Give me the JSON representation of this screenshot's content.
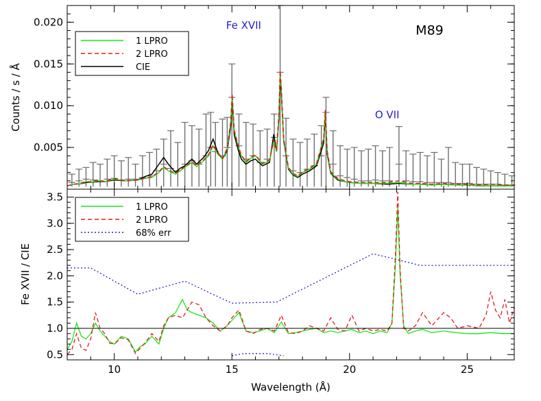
{
  "chart_data": [
    {
      "type": "line",
      "id": "spectrum",
      "ylabel": "Counts / s / Å",
      "xlim": [
        8,
        27
      ],
      "ylim": [
        0,
        0.022
      ],
      "yticks": [
        "0.005",
        "0.010",
        "0.015",
        "0.020"
      ],
      "annotations": [
        {
          "text": "M89",
          "x": 23.4,
          "y": 0.0185,
          "color": "#000000"
        },
        {
          "text": "Fe XVII",
          "x": 15.5,
          "y": 0.0192,
          "color": "#1f1fd0"
        },
        {
          "text": "O VII",
          "x": 21.6,
          "y": 0.0085,
          "color": "#1f1fd0"
        }
      ],
      "legend": {
        "placement": "top-left",
        "entries": [
          {
            "label": "1 LPRO",
            "color": "#19e619",
            "style": "solid"
          },
          {
            "label": "2 LPRO",
            "color": "#e61919",
            "style": "dashed"
          },
          {
            "label": "CIE",
            "color": "#000000",
            "style": "solid"
          }
        ]
      },
      "model_x": [
        8.0,
        8.3,
        8.5,
        8.8,
        9.0,
        9.3,
        9.6,
        10.0,
        10.5,
        11.0,
        11.3,
        11.6,
        11.9,
        12.1,
        12.3,
        12.6,
        12.8,
        13.0,
        13.3,
        13.5,
        13.8,
        14.0,
        14.2,
        14.4,
        14.6,
        14.8,
        14.95,
        15.01,
        15.1,
        15.26,
        15.4,
        15.6,
        15.8,
        16.0,
        16.3,
        16.6,
        16.78,
        16.9,
        17.0,
        17.05,
        17.1,
        17.2,
        17.4,
        17.6,
        17.8,
        18.0,
        18.3,
        18.6,
        18.9,
        18.97,
        19.05,
        19.2,
        19.5,
        19.8,
        20.0,
        20.5,
        21.0,
        21.6,
        22.1,
        22.6,
        23.0,
        23.5,
        24.0,
        24.5,
        25.0,
        25.5,
        26.0,
        26.5,
        27.0
      ],
      "series": [
        {
          "name": "1 LPRO",
          "color": "#19e619",
          "dash": "",
          "values": [
            0.0004,
            0.0006,
            0.0006,
            0.0009,
            0.0008,
            0.001,
            0.0009,
            0.0012,
            0.001,
            0.0011,
            0.0013,
            0.0014,
            0.002,
            0.0026,
            0.0022,
            0.0018,
            0.0022,
            0.0026,
            0.0032,
            0.0027,
            0.0034,
            0.004,
            0.0052,
            0.0042,
            0.0036,
            0.0048,
            0.008,
            0.0113,
            0.007,
            0.0052,
            0.004,
            0.0032,
            0.0037,
            0.004,
            0.003,
            0.0034,
            0.0058,
            0.0045,
            0.009,
            0.014,
            0.012,
            0.006,
            0.0025,
            0.0018,
            0.0015,
            0.002,
            0.0024,
            0.003,
            0.006,
            0.0094,
            0.0045,
            0.002,
            0.0012,
            0.0009,
            0.0008,
            0.0007,
            0.0007,
            0.0007,
            0.0008,
            0.0006,
            0.0006,
            0.0005,
            0.0006,
            0.0005,
            0.0005,
            0.0004,
            0.0004,
            0.0004,
            0.0004
          ]
        },
        {
          "name": "2 LPRO",
          "color": "#e61919",
          "dash": "6,4",
          "values": [
            0.0004,
            0.0006,
            0.0007,
            0.0009,
            0.0009,
            0.0011,
            0.0009,
            0.0013,
            0.001,
            0.0011,
            0.0013,
            0.0015,
            0.0021,
            0.0027,
            0.0023,
            0.0019,
            0.0023,
            0.0027,
            0.0033,
            0.0028,
            0.0035,
            0.0041,
            0.0053,
            0.0043,
            0.0037,
            0.0049,
            0.0081,
            0.0114,
            0.0071,
            0.0053,
            0.0041,
            0.0033,
            0.0038,
            0.0041,
            0.0031,
            0.0035,
            0.0059,
            0.0046,
            0.0091,
            0.0142,
            0.0121,
            0.0061,
            0.0026,
            0.0019,
            0.0016,
            0.0021,
            0.0025,
            0.0031,
            0.0061,
            0.0095,
            0.0046,
            0.0021,
            0.0013,
            0.001,
            0.0009,
            0.0008,
            0.0008,
            0.0008,
            0.001,
            0.0007,
            0.0007,
            0.0006,
            0.0007,
            0.0006,
            0.0006,
            0.0005,
            0.0006,
            0.0005,
            0.0005
          ]
        },
        {
          "name": "CIE",
          "color": "#000000",
          "dash": "",
          "values": [
            0.0004,
            0.0006,
            0.0006,
            0.0008,
            0.0008,
            0.0009,
            0.0009,
            0.0011,
            0.001,
            0.0011,
            0.0015,
            0.0018,
            0.003,
            0.0038,
            0.003,
            0.002,
            0.0025,
            0.0028,
            0.0036,
            0.003,
            0.0038,
            0.0046,
            0.006,
            0.0044,
            0.0036,
            0.0046,
            0.0075,
            0.0108,
            0.0065,
            0.0048,
            0.0036,
            0.003,
            0.0034,
            0.0036,
            0.0028,
            0.0032,
            0.0066,
            0.0045,
            0.0085,
            0.0132,
            0.0115,
            0.0058,
            0.0024,
            0.0017,
            0.0014,
            0.0018,
            0.0022,
            0.0028,
            0.0055,
            0.0088,
            0.0042,
            0.0019,
            0.0011,
            0.0009,
            0.0008,
            0.0007,
            0.0007,
            0.0006,
            0.0007,
            0.0006,
            0.0006,
            0.0005,
            0.0006,
            0.0005,
            0.0005,
            0.0004,
            0.0004,
            0.0004,
            0.0004
          ]
        }
      ],
      "errorbars": [
        [
          8.2,
          0.0008,
          0.0018
        ],
        [
          8.5,
          0.001,
          0.0024
        ],
        [
          8.8,
          0.0012,
          0.0026
        ],
        [
          9.1,
          0.0011,
          0.0032
        ],
        [
          9.4,
          0.001,
          0.003
        ],
        [
          9.7,
          0.0012,
          0.0036
        ],
        [
          10.0,
          0.0013,
          0.004
        ],
        [
          10.3,
          0.0011,
          0.0034
        ],
        [
          10.6,
          0.0012,
          0.0038
        ],
        [
          10.9,
          0.0012,
          0.003
        ],
        [
          11.2,
          0.0014,
          0.004
        ],
        [
          11.5,
          0.0016,
          0.0044
        ],
        [
          11.8,
          0.0022,
          0.0048
        ],
        [
          12.1,
          0.003,
          0.006
        ],
        [
          12.4,
          0.0025,
          0.007
        ],
        [
          12.7,
          0.0022,
          0.0056
        ],
        [
          13.0,
          0.003,
          0.008
        ],
        [
          13.3,
          0.0034,
          0.0076
        ],
        [
          13.6,
          0.003,
          0.0072
        ],
        [
          13.9,
          0.004,
          0.009
        ],
        [
          14.1,
          0.005,
          0.0092
        ],
        [
          14.3,
          0.0045,
          0.008
        ],
        [
          14.6,
          0.004,
          0.0084
        ],
        [
          14.8,
          0.005,
          0.0086
        ],
        [
          15.0,
          0.011,
          0.015
        ],
        [
          15.3,
          0.0052,
          0.009
        ],
        [
          15.6,
          0.0036,
          0.008
        ],
        [
          15.9,
          0.004,
          0.0078
        ],
        [
          16.2,
          0.0032,
          0.007
        ],
        [
          16.5,
          0.0036,
          0.0072
        ],
        [
          16.8,
          0.0062,
          0.009
        ],
        [
          17.05,
          0.014,
          0.022
        ],
        [
          17.3,
          0.004,
          0.0085
        ],
        [
          17.6,
          0.0022,
          0.006
        ],
        [
          17.9,
          0.002,
          0.0056
        ],
        [
          18.2,
          0.0024,
          0.006
        ],
        [
          18.5,
          0.0028,
          0.0066
        ],
        [
          18.8,
          0.004,
          0.0076
        ],
        [
          19.0,
          0.0092,
          0.011
        ],
        [
          19.3,
          0.003,
          0.007
        ],
        [
          19.6,
          0.0016,
          0.0052
        ],
        [
          19.9,
          0.0014,
          0.0048
        ],
        [
          20.2,
          0.0012,
          0.005
        ],
        [
          20.5,
          0.001,
          0.0046
        ],
        [
          20.8,
          0.001,
          0.0048
        ],
        [
          21.1,
          0.0011,
          0.0052
        ],
        [
          21.4,
          0.001,
          0.0046
        ],
        [
          21.7,
          0.001,
          0.005
        ],
        [
          22.1,
          0.003,
          0.0075
        ],
        [
          22.4,
          0.001,
          0.0046
        ],
        [
          22.7,
          0.0009,
          0.0042
        ],
        [
          23.0,
          0.0009,
          0.0044
        ],
        [
          23.3,
          0.0008,
          0.004
        ],
        [
          23.6,
          0.0008,
          0.0044
        ],
        [
          23.9,
          0.0008,
          0.0036
        ],
        [
          24.2,
          0.0008,
          0.005
        ],
        [
          24.5,
          0.0007,
          0.0032
        ],
        [
          24.8,
          0.0007,
          0.003
        ],
        [
          25.1,
          0.0007,
          0.003
        ],
        [
          25.4,
          0.0006,
          0.0026
        ],
        [
          25.7,
          0.0006,
          0.0024
        ],
        [
          26.0,
          0.0006,
          0.0022
        ],
        [
          26.3,
          0.0006,
          0.002
        ],
        [
          26.6,
          0.0005,
          0.0018
        ],
        [
          26.9,
          0.0005,
          0.0016
        ]
      ]
    },
    {
      "type": "line",
      "id": "ratio",
      "xlabel": "Wavelength (Å)",
      "ylabel": "Fe XVII / CIE",
      "xlim": [
        8,
        27
      ],
      "ylim": [
        0.4,
        3.65
      ],
      "xticks": [
        "10",
        "15",
        "20",
        "25"
      ],
      "yticks": [
        "0.5",
        "1.0",
        "1.5",
        "2.0",
        "2.5",
        "3.0",
        "3.5"
      ],
      "reference_line": 1.0,
      "legend": {
        "placement": "top-left",
        "entries": [
          {
            "label": "1 LPRO",
            "color": "#19e619",
            "style": "solid"
          },
          {
            "label": "2 LPRO",
            "color": "#e61919",
            "style": "dashed"
          },
          {
            "label": "68% err",
            "color": "#1f1fd0",
            "style": "dotted"
          }
        ]
      },
      "series": [
        {
          "name": "1 LPRO",
          "color": "#19e619",
          "dash": "",
          "x": [
            8.0,
            8.2,
            8.4,
            8.6,
            8.8,
            9.0,
            9.2,
            9.4,
            9.6,
            9.8,
            10.0,
            10.3,
            10.6,
            10.9,
            11.1,
            11.3,
            11.6,
            11.9,
            12.1,
            12.3,
            12.6,
            12.9,
            13.1,
            13.3,
            13.6,
            13.9,
            14.2,
            14.5,
            14.8,
            15.0,
            15.3,
            15.6,
            15.9,
            16.2,
            16.5,
            16.8,
            17.1,
            17.4,
            17.7,
            18.0,
            18.3,
            18.6,
            18.9,
            19.2,
            19.5,
            19.8,
            20.1,
            20.4,
            20.7,
            21.0,
            21.3,
            21.6,
            21.8,
            21.95,
            22.05,
            22.15,
            22.3,
            22.5,
            22.8,
            23.1,
            23.5,
            24.0,
            24.5,
            25.0,
            25.5,
            26.0,
            26.5,
            27.0
          ],
          "values": [
            0.6,
            0.75,
            1.1,
            0.85,
            0.8,
            0.9,
            1.1,
            0.95,
            0.85,
            0.75,
            0.7,
            0.85,
            0.8,
            0.55,
            0.65,
            0.7,
            0.85,
            0.7,
            1.0,
            1.2,
            1.3,
            1.55,
            1.35,
            1.3,
            1.25,
            1.2,
            1.1,
            0.95,
            1.05,
            1.15,
            1.3,
            0.95,
            0.92,
            0.95,
            1.0,
            0.92,
            1.12,
            0.9,
            0.92,
            0.95,
            0.98,
            1.0,
            0.92,
            0.95,
            0.92,
            0.95,
            0.98,
            0.92,
            0.95,
            0.9,
            0.95,
            0.92,
            1.1,
            2.2,
            3.3,
            2.0,
            1.05,
            0.9,
            0.95,
            0.98,
            0.92,
            0.95,
            0.92,
            0.9,
            0.9,
            0.92,
            0.9,
            0.9
          ]
        },
        {
          "name": "2 LPRO",
          "color": "#e61919",
          "dash": "6,4",
          "x": [
            8.0,
            8.2,
            8.4,
            8.6,
            8.8,
            9.0,
            9.2,
            9.4,
            9.6,
            9.8,
            10.0,
            10.3,
            10.6,
            10.9,
            11.1,
            11.3,
            11.6,
            11.9,
            12.1,
            12.3,
            12.6,
            12.9,
            13.1,
            13.3,
            13.6,
            13.9,
            14.2,
            14.5,
            14.8,
            15.0,
            15.3,
            15.6,
            15.9,
            16.2,
            16.5,
            16.8,
            17.1,
            17.4,
            17.7,
            18.0,
            18.3,
            18.6,
            18.9,
            19.2,
            19.5,
            19.8,
            20.1,
            20.4,
            20.7,
            21.0,
            21.3,
            21.6,
            21.8,
            21.95,
            22.05,
            22.15,
            22.3,
            22.5,
            22.8,
            23.1,
            23.5,
            24.0,
            24.3,
            24.6,
            25.0,
            25.5,
            25.8,
            26.0,
            26.2,
            26.4,
            26.6,
            26.8,
            27.0
          ],
          "values": [
            0.5,
            0.6,
            0.9,
            0.62,
            0.58,
            0.8,
            1.3,
            1.0,
            0.9,
            0.72,
            0.7,
            0.82,
            0.78,
            0.52,
            0.62,
            0.72,
            0.9,
            0.75,
            1.05,
            1.2,
            1.25,
            1.2,
            1.35,
            1.5,
            1.45,
            1.2,
            1.05,
            0.95,
            1.05,
            1.2,
            1.35,
            0.95,
            0.9,
            0.98,
            1.0,
            0.95,
            1.25,
            0.92,
            0.9,
            0.95,
            1.05,
            1.0,
            0.95,
            1.2,
            0.98,
            0.95,
            1.25,
            0.95,
            1.0,
            0.95,
            0.98,
            0.95,
            1.1,
            2.4,
            3.6,
            2.1,
            1.0,
            0.95,
            1.05,
            1.3,
            1.05,
            1.3,
            1.2,
            1.0,
            1.05,
            1.0,
            1.25,
            1.7,
            1.35,
            1.2,
            1.55,
            1.1,
            1.4
          ]
        },
        {
          "name": "68% err",
          "color": "#1f1fd0",
          "dash": "2,3",
          "x": [
            8.0,
            9.0,
            11.0,
            13.0,
            15.0,
            16.9,
            21.0,
            23.0,
            25.0,
            27.0
          ],
          "values": [
            2.15,
            2.15,
            1.65,
            1.9,
            1.48,
            1.5,
            2.42,
            2.2,
            2.2,
            2.2
          ]
        },
        {
          "name": "68% err",
          "color": "#1f1fd0",
          "dash": "2,3",
          "nolegend": true,
          "x": [
            15.0,
            15.5,
            16.5,
            17.2
          ],
          "values": [
            0.48,
            0.52,
            0.52,
            0.48
          ]
        }
      ]
    }
  ]
}
